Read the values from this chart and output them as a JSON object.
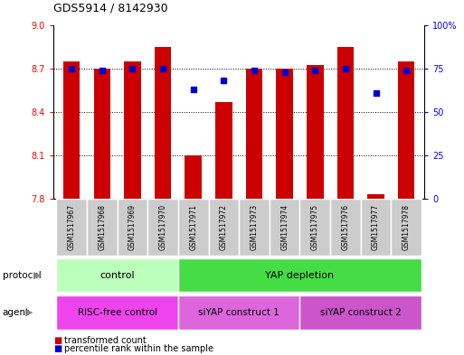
{
  "title": "GDS5914 / 8142930",
  "samples": [
    "GSM1517967",
    "GSM1517968",
    "GSM1517969",
    "GSM1517970",
    "GSM1517971",
    "GSM1517972",
    "GSM1517973",
    "GSM1517974",
    "GSM1517975",
    "GSM1517976",
    "GSM1517977",
    "GSM1517978"
  ],
  "transformed_counts": [
    8.75,
    8.7,
    8.75,
    8.85,
    8.1,
    8.47,
    8.7,
    8.7,
    8.72,
    8.85,
    7.83,
    8.75
  ],
  "percentile_ranks": [
    75,
    74,
    75,
    75,
    63,
    68,
    74,
    73,
    74,
    75,
    61,
    74
  ],
  "ylim_left": [
    7.8,
    9.0
  ],
  "ylim_right": [
    0,
    100
  ],
  "yticks_left": [
    7.8,
    8.1,
    8.4,
    8.7,
    9.0
  ],
  "yticks_right": [
    0,
    25,
    50,
    75,
    100
  ],
  "bar_color": "#cc0000",
  "dot_color": "#0000cc",
  "bar_width": 0.55,
  "protocol_groups": [
    {
      "label": "control",
      "start": 0,
      "end": 3,
      "color": "#bbffbb"
    },
    {
      "label": "YAP depletion",
      "start": 4,
      "end": 11,
      "color": "#44dd44"
    }
  ],
  "agent_groups": [
    {
      "label": "RISC-free control",
      "start": 0,
      "end": 3,
      "color": "#ee44ee"
    },
    {
      "label": "siYAP construct 1",
      "start": 4,
      "end": 7,
      "color": "#dd66dd"
    },
    {
      "label": "siYAP construct 2",
      "start": 8,
      "end": 11,
      "color": "#cc55cc"
    }
  ],
  "legend_items": [
    {
      "label": "transformed count",
      "color": "#cc0000"
    },
    {
      "label": "percentile rank within the sample",
      "color": "#0000cc"
    }
  ],
  "protocol_label": "protocol",
  "agent_label": "agent",
  "background_color": "#ffffff",
  "label_box_color": "#cccccc",
  "label_box_edge": "#ffffff"
}
